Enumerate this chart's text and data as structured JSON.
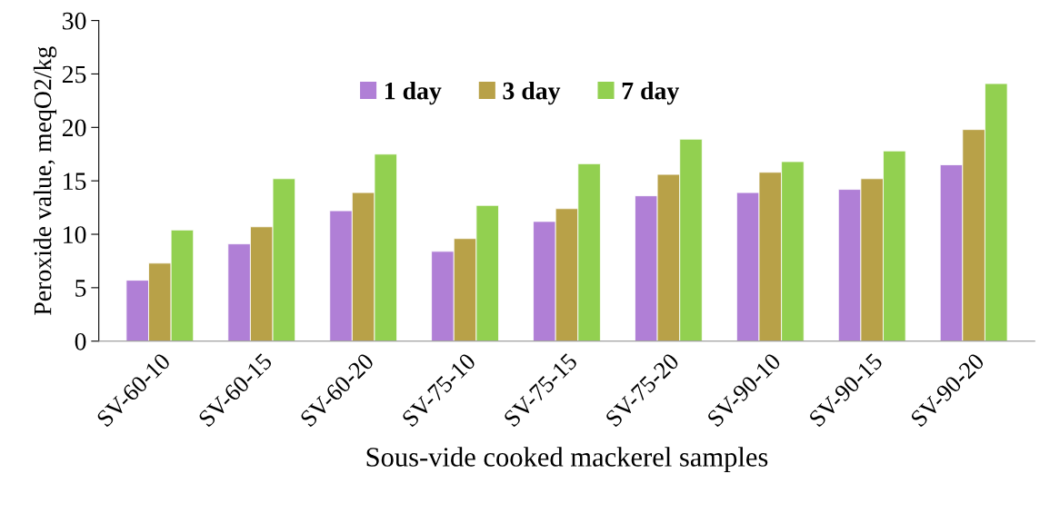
{
  "chart_data": {
    "type": "bar",
    "xlabel": "Sous-vide cooked mackerel samples",
    "ylabel": "Peroxide value, meqO2/kg",
    "categories": [
      "SV-60-10",
      "SV-60-15",
      "SV-60-20",
      "SV-75-10",
      "SV-75-15",
      "SV-75-20",
      "SV-90-10",
      "SV-90-15",
      "SV-90-20"
    ],
    "series": [
      {
        "name": "1 day",
        "color": "#b07fd6",
        "values": [
          5.7,
          9.1,
          12.2,
          8.4,
          11.2,
          13.6,
          13.9,
          14.2,
          16.5
        ]
      },
      {
        "name": "3 day",
        "color": "#b8a148",
        "values": [
          7.3,
          10.7,
          13.9,
          9.6,
          12.4,
          15.6,
          15.8,
          15.2,
          19.8
        ]
      },
      {
        "name": "7 day",
        "color": "#92d050",
        "values": [
          10.4,
          15.2,
          17.5,
          12.7,
          16.6,
          18.9,
          16.8,
          17.8,
          24.1
        ]
      }
    ],
    "ylim": [
      0,
      30
    ],
    "yticks": [
      0,
      5,
      10,
      15,
      20,
      25,
      30
    ],
    "grid": false,
    "legend": "top"
  }
}
